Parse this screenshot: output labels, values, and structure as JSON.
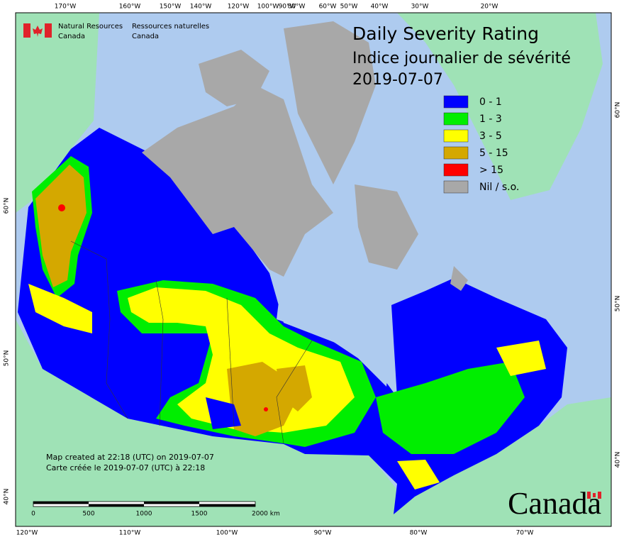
{
  "agency": {
    "en": [
      "Natural Resources",
      "Canada"
    ],
    "fr": [
      "Ressources naturelles",
      "Canada"
    ]
  },
  "title": {
    "en": "Daily Severity Rating",
    "fr": "Indice journalier de sévérité",
    "date": "2019-07-07"
  },
  "legend": [
    {
      "label": "0 - 1",
      "color": "#0000ff"
    },
    {
      "label": "1 - 3",
      "color": "#00ee00"
    },
    {
      "label": "3 - 5",
      "color": "#ffff00"
    },
    {
      "label": "5 - 15",
      "color": "#d4a800"
    },
    {
      "label": "> 15",
      "color": "#ff0000"
    },
    {
      "label": "Nil / s.o.",
      "color": "#a8a8a8"
    }
  ],
  "notes": [
    "Map created at 22:18 (UTC) on 2019-07-07",
    "Carte créée le 2019-07-07 (UTC) à 22:18"
  ],
  "scale_bar": {
    "labels": [
      "0",
      "500",
      "1000",
      "1500",
      "2000 km"
    ]
  },
  "graticule": {
    "top": [
      "170°W",
      "160°W",
      "150°W",
      "140°W",
      "120°W",
      "100°W",
      "90°W",
      "80°W",
      "60°W",
      "50°W",
      "40°W",
      "30°W",
      "20°W"
    ],
    "bottom": [
      "120°W",
      "110°W",
      "100°W",
      "90°W",
      "80°W",
      "70°W"
    ],
    "left": [
      "60°N",
      "50°N",
      "40°N"
    ],
    "right": [
      "60°N",
      "50°N",
      "40°N"
    ]
  },
  "wordmark": "Canada"
}
